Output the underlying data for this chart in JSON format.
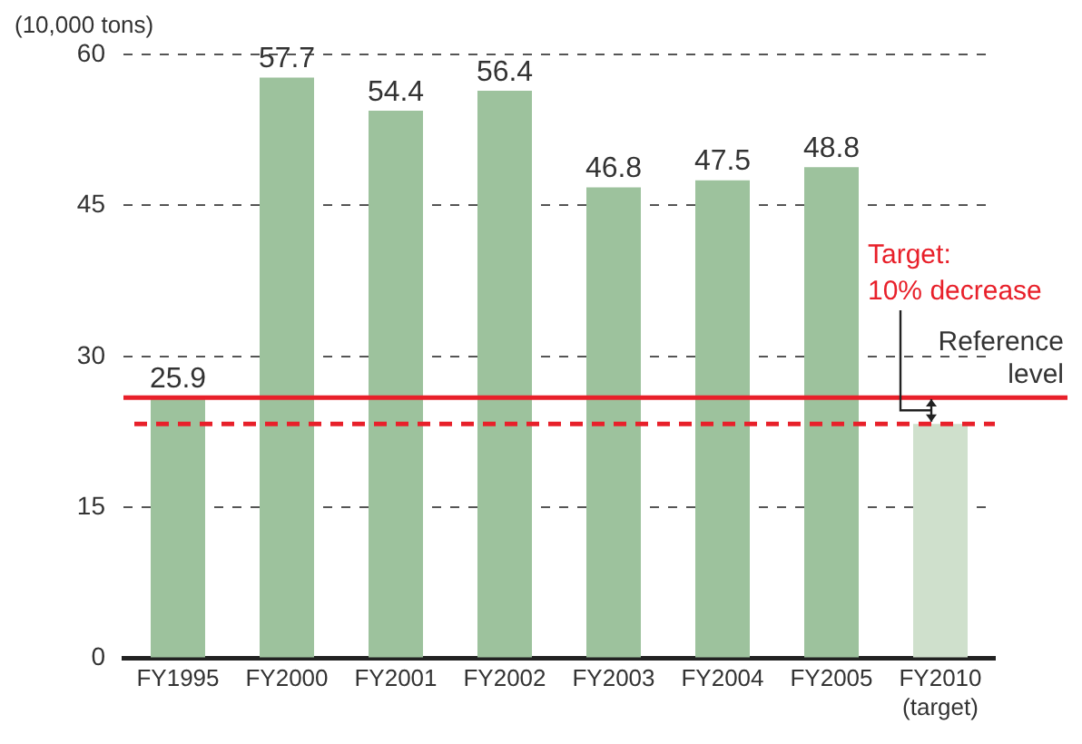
{
  "chart_data": {
    "type": "bar",
    "ylabel": "(10,000 tons)",
    "categories": [
      "FY1995",
      "FY2000",
      "FY2001",
      "FY2002",
      "FY2003",
      "FY2004",
      "FY2005",
      "FY2010\n(target)"
    ],
    "values": [
      25.9,
      57.7,
      54.4,
      56.4,
      46.8,
      47.5,
      48.8,
      23.3
    ],
    "colors": [
      "#9dc29d",
      "#9dc29d",
      "#9dc29d",
      "#9dc29d",
      "#9dc29d",
      "#9dc29d",
      "#9dc29d",
      "#cfe0cc"
    ],
    "value_labels": [
      "25.9",
      "57.7",
      "54.4",
      "56.4",
      "46.8",
      "47.5",
      "48.8",
      null
    ],
    "ylim": [
      0,
      60
    ],
    "yticks": [
      0,
      15,
      30,
      45,
      60
    ],
    "grid": "y",
    "ref_lines": [
      {
        "axis": "y",
        "value": 25.9,
        "label": "Reference\nlevel",
        "color": "#e8202a",
        "line_style": "solid"
      },
      {
        "axis": "y",
        "value": 23.3,
        "color": "#e8202a",
        "line_style": "dashed"
      }
    ],
    "annotations": [
      "Target:\n10% decrease"
    ]
  }
}
